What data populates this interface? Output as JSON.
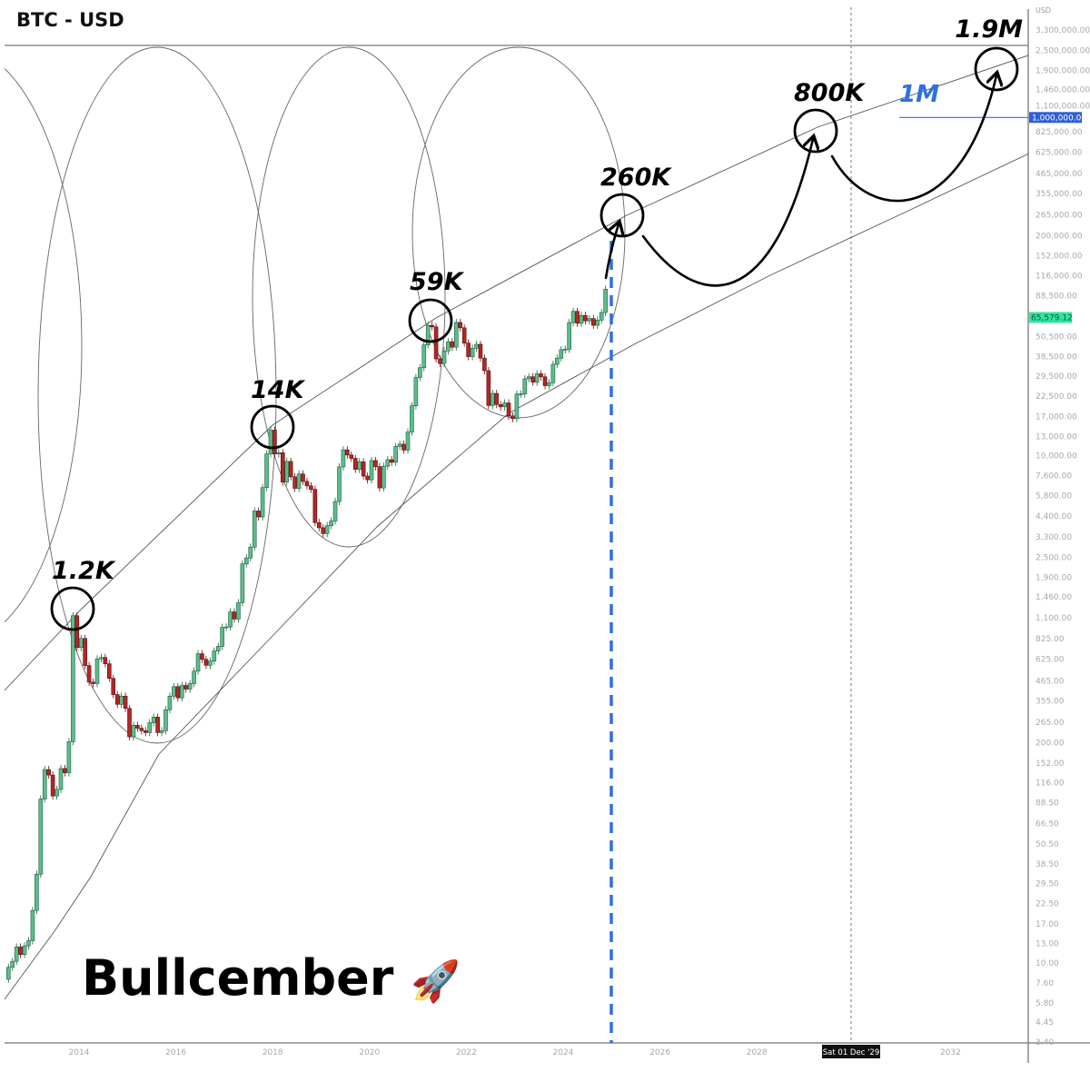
{
  "header": {
    "title": "BTC - USD",
    "currency_label": "USD"
  },
  "footer_caption": {
    "text": "Bullcember",
    "emoji": "🚀"
  },
  "annotations": {
    "peaks": [
      "1.2K",
      "14K",
      "59K",
      "260K",
      "800K",
      "1.9M"
    ],
    "level_label": "1M",
    "level_value": 1000000,
    "level_color": "#2f6fe0"
  },
  "crosshair_date_label": "Sat 01 Dec '29",
  "chart_data": {
    "type": "candlestick",
    "title": "BTC - USD",
    "y_scale": "log",
    "ylim": [
      3.4,
      3300000
    ],
    "xlim": [
      2012.5,
      2033.9
    ],
    "grid": false,
    "start_month": "2012-07",
    "interval": "1M",
    "closes": [
      9.4,
      10.2,
      12.4,
      11.2,
      12.6,
      13.5,
      20.4,
      33.4,
      93,
      139,
      129,
      97,
      106,
      141,
      133,
      203,
      1129,
      732,
      829,
      573,
      457,
      448,
      628,
      640,
      587,
      481,
      386,
      338,
      378,
      320,
      217,
      254,
      244,
      236,
      230,
      263,
      284,
      230,
      236,
      314,
      378,
      430,
      369,
      437,
      416,
      448,
      531,
      673,
      624,
      575,
      609,
      699,
      745,
      964,
      970,
      1190,
      1080,
      1348,
      2286,
      2480,
      2875,
      4703,
      4338,
      6468,
      10233,
      14156,
      10221,
      10397,
      6973,
      9240,
      7494,
      6404,
      7780,
      7037,
      6625,
      6318,
      4017,
      3743,
      3457,
      3854,
      4105,
      5350,
      8574,
      10817,
      10085,
      9630,
      8293,
      9199,
      7569,
      7193,
      9350,
      8599,
      6438,
      8658,
      9461,
      9137,
      11323,
      11680,
      10784,
      13781,
      19700,
      28990,
      33114,
      45137,
      58918,
      57750,
      37332,
      35041,
      41626,
      47166,
      43790,
      61318,
      57005,
      46306,
      38483,
      43194,
      45538,
      37714,
      31792,
      19785,
      23336,
      20050,
      19431,
      20495,
      17168,
      16548,
      23139,
      23147,
      28478,
      29268,
      27219,
      30477,
      29230,
      25931,
      26967,
      34667,
      37713,
      42265,
      42582,
      61198,
      71333,
      60637,
      67491,
      62678,
      64619,
      58969,
      63329,
      70215,
      96449
    ],
    "last_price_label": "65,579.12",
    "last_price": 65579.12,
    "up_color": "#5cbd8b",
    "down_color": "#b32626",
    "y_ticks": [
      "3,300,000.00",
      "2,500,000.00",
      "1,900,000.00",
      "1,460,000.00",
      "1,100,000.00",
      "825,000.00",
      "625,000.00",
      "465,000.00",
      "355,000.00",
      "265,000.00",
      "200,000.00",
      "152,000.00",
      "116,000.00",
      "88,500.00",
      "50,500.00",
      "38,500.00",
      "29,500.00",
      "22,500.00",
      "17,000.00",
      "13,000.00",
      "10,000.00",
      "7,600.00",
      "5,800.00",
      "4,400.00",
      "3,300.00",
      "2,500.00",
      "1,900.00",
      "1,460.00",
      "1,100.00",
      "825.00",
      "625.00",
      "465.00",
      "355.00",
      "265.00",
      "200.00",
      "152.00",
      "116.00",
      "88.50",
      "66.50",
      "50.50",
      "38.50",
      "29.50",
      "22.50",
      "17.00",
      "13.00",
      "10.00",
      "7.60",
      "5.80",
      "4.45",
      "3.40"
    ],
    "level_tick_label": "1,000,000.00",
    "x_ticks": [
      "2014",
      "2016",
      "2018",
      "2020",
      "2022",
      "2024",
      "2026",
      "2028",
      "2032"
    ],
    "crosshair_date": 2029.92,
    "projection_date": 2025.0
  }
}
